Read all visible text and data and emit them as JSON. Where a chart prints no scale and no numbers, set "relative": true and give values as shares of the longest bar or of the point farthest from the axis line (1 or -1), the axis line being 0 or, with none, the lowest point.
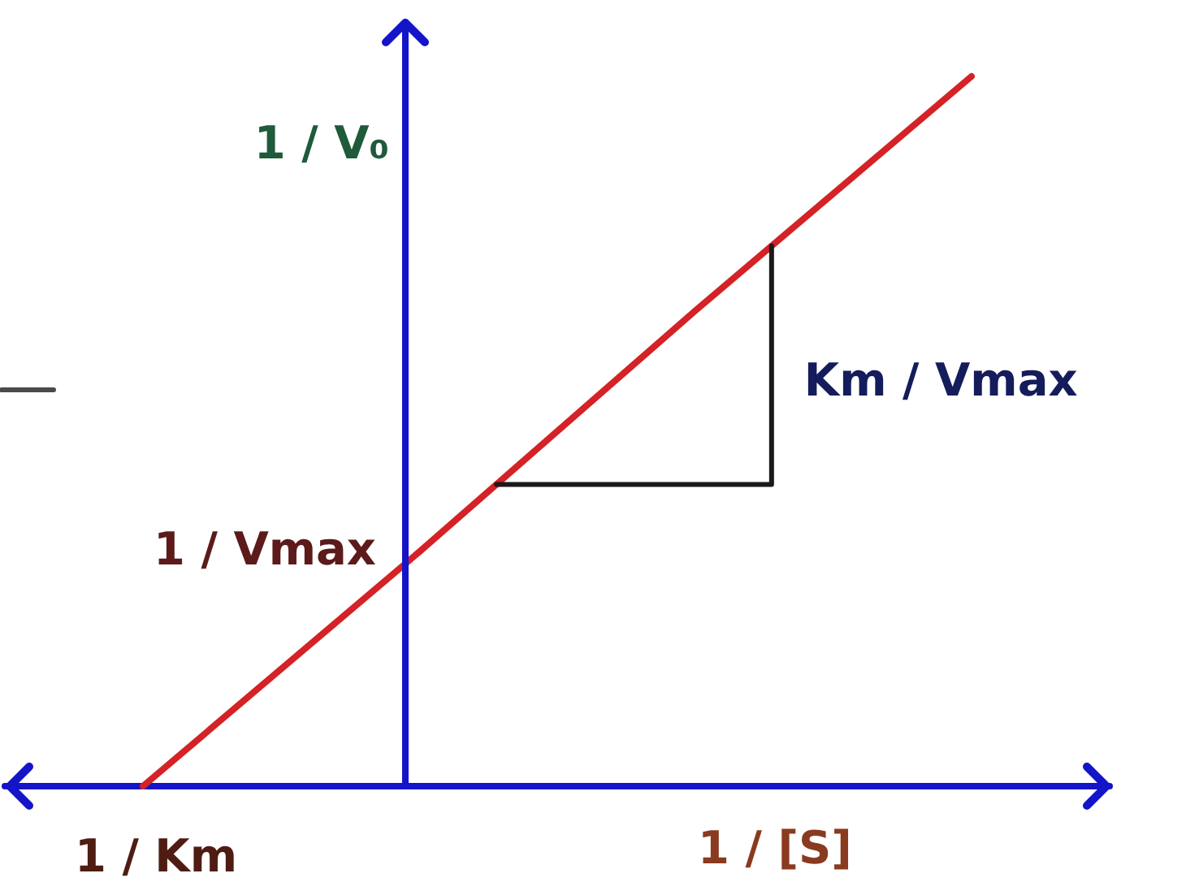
{
  "chart_data": {
    "type": "line",
    "relative": true,
    "xlabel": "1 / [S]",
    "ylabel": "1 / V₀",
    "annotations": [
      "Km / Vmax",
      "1 / Vmax",
      "1 / Km"
    ],
    "categories": [
      null,
      null,
      null,
      null
    ],
    "values": [
      0,
      0.33,
      0.67,
      1
    ],
    "color": "#d42226"
  }
}
